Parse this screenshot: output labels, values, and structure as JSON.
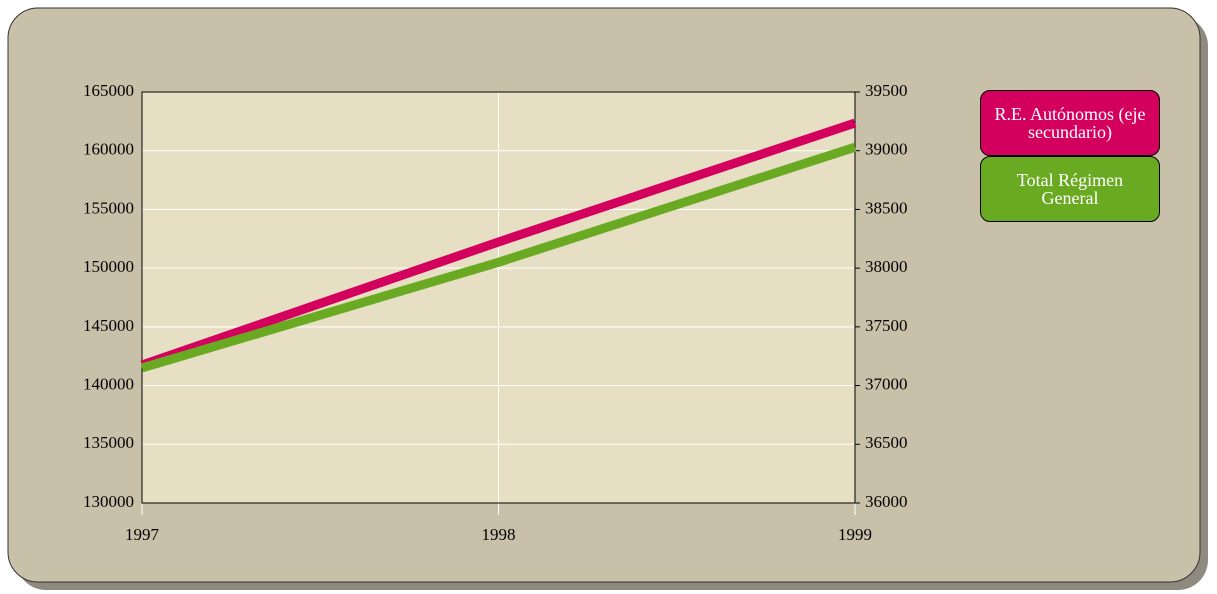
{
  "chart_data": {
    "type": "line",
    "x": [
      1997,
      1998,
      1999
    ],
    "xlim": [
      1997,
      1999
    ],
    "xticks": [
      1997,
      1998,
      1999
    ],
    "ylim": [
      130000,
      165000
    ],
    "yticks": [
      130000,
      135000,
      140000,
      145000,
      150000,
      155000,
      160000,
      165000
    ],
    "y2lim": [
      36000,
      39500
    ],
    "y2ticks": [
      36000,
      36500,
      37000,
      37500,
      38000,
      38500,
      39000,
      39500
    ],
    "grid": true,
    "legend": "right",
    "series": [
      {
        "name": "R.E. Autónomos (eje secundario)",
        "color": "#d4005e",
        "axis": "y2",
        "values": [
          37175,
          38223,
          39236
        ]
      },
      {
        "name": "Total Régimen General",
        "color": "#6aaa22",
        "values": [
          141500,
          150500,
          160300
        ]
      }
    ]
  }
}
